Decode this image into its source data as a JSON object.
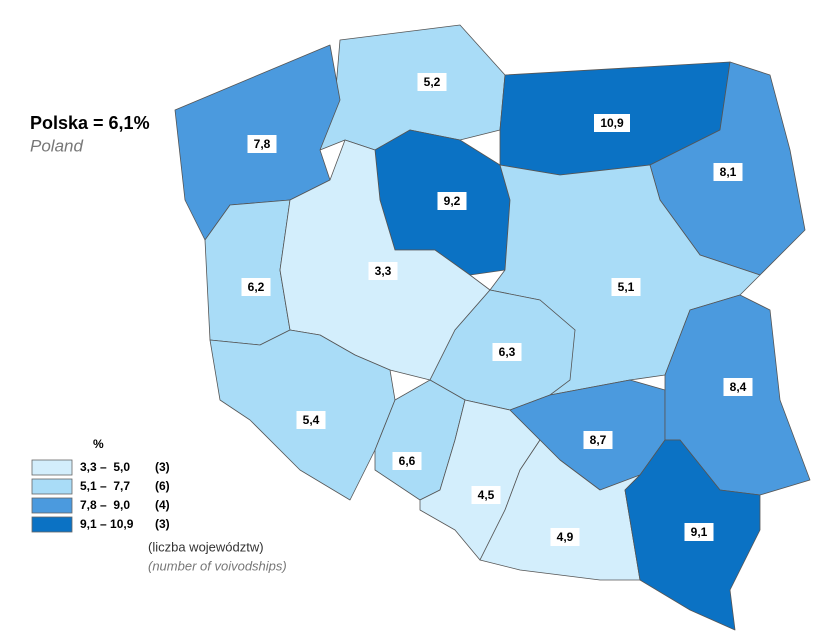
{
  "title": "Polska = 6,1%",
  "subtitle": "Poland",
  "regions": [
    {
      "label": "5,2",
      "color": "#a9dcf7"
    },
    {
      "label": "7,8",
      "color": "#4b9ade"
    },
    {
      "label": "10,9",
      "color": "#0b72c4"
    },
    {
      "label": "8,1",
      "color": "#4b9ade"
    },
    {
      "label": "9,2",
      "color": "#0b72c4"
    },
    {
      "label": "6,2",
      "color": "#a9dcf7"
    },
    {
      "label": "3,3",
      "color": "#d3eefc"
    },
    {
      "label": "5,1",
      "color": "#a9dcf7"
    },
    {
      "label": "6,3",
      "color": "#a9dcf7"
    },
    {
      "label": "5,4",
      "color": "#a9dcf7"
    },
    {
      "label": "6,6",
      "color": "#a9dcf7"
    },
    {
      "label": "4,5",
      "color": "#d3eefc"
    },
    {
      "label": "8,7",
      "color": "#4b9ade"
    },
    {
      "label": "8,4",
      "color": "#4b9ade"
    },
    {
      "label": "4,9",
      "color": "#d3eefc"
    },
    {
      "label": "9,1",
      "color": "#0b72c4"
    }
  ],
  "legend": {
    "title": "%",
    "items": [
      {
        "range": "3,3 –  5,0",
        "count": "(3)",
        "color": "#d3eefc"
      },
      {
        "range": "5,1 –  7,7",
        "count": "(6)",
        "color": "#a9dcf7"
      },
      {
        "range": "7,8 –  9,0",
        "count": "(4)",
        "color": "#4b9ade"
      },
      {
        "range": "9,1 – 10,9",
        "count": "(3)",
        "color": "#0b72c4"
      }
    ],
    "note": "(liczba województw)",
    "note_en": "(number of voivodships)"
  }
}
